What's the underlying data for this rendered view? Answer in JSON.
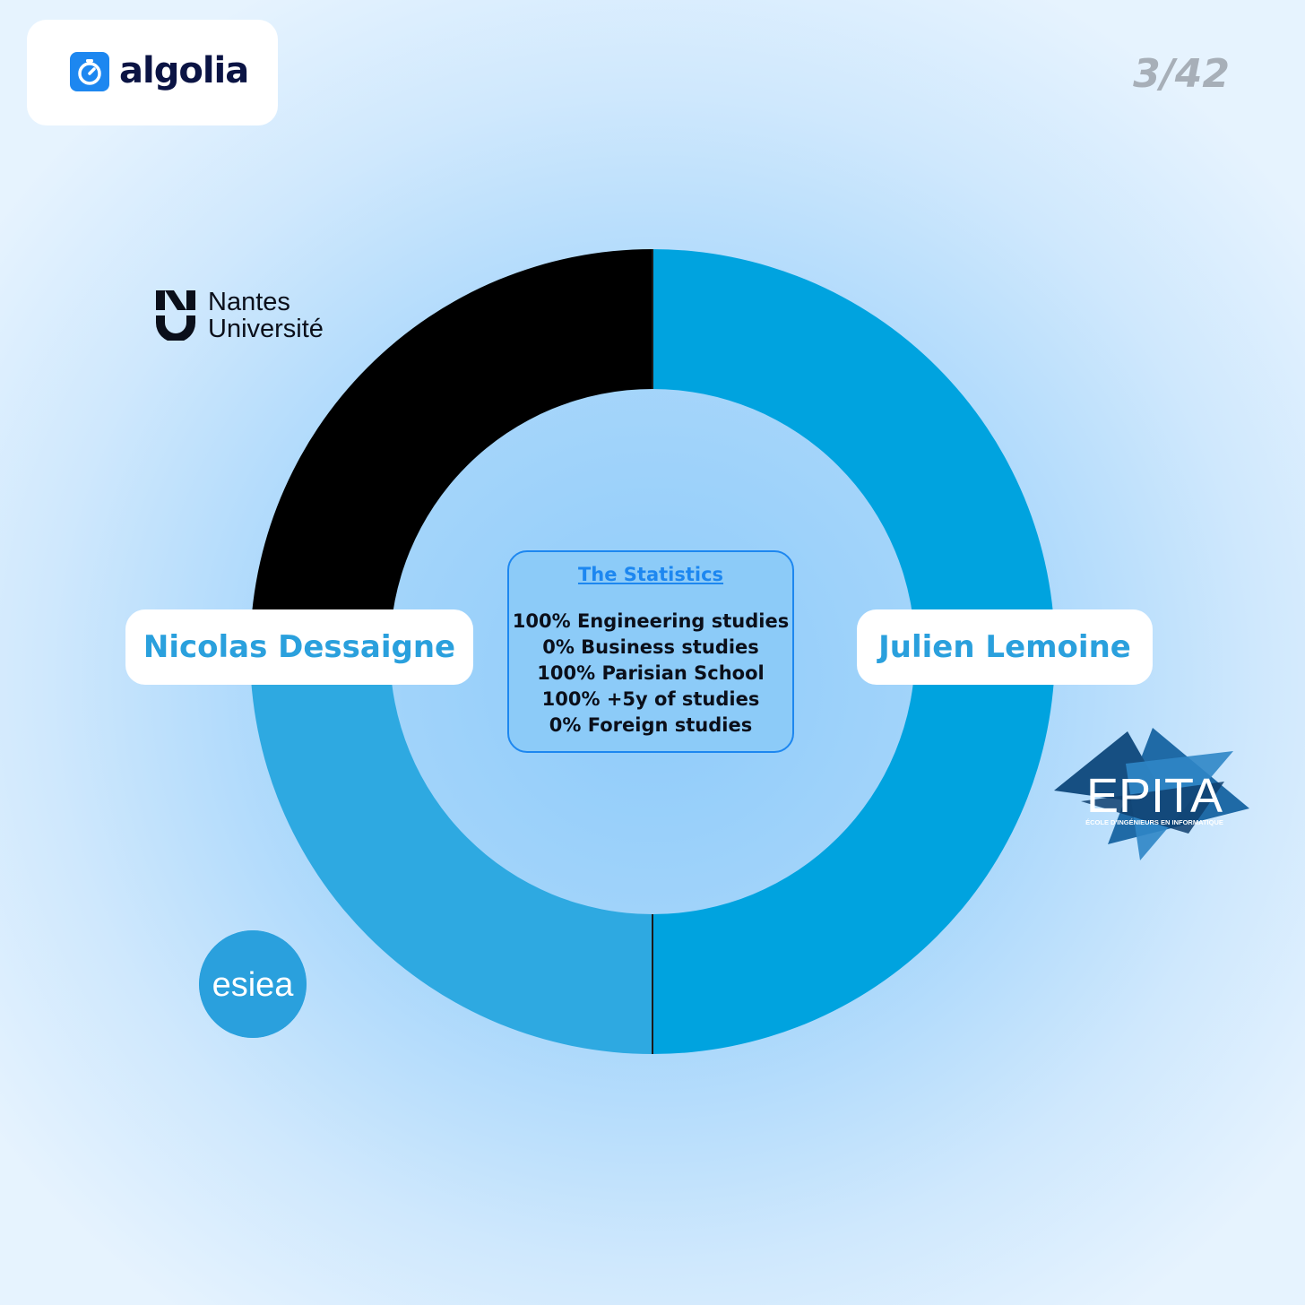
{
  "header": {
    "brand": "algolia",
    "page_counter": "3/42"
  },
  "colors": {
    "ring_segment_1": "#000000",
    "ring_segment_2": "#00a3df",
    "ring_segment_3": "#2ea9e1",
    "accent_blue": "#1d87f0",
    "name_text": "#2aa0dd"
  },
  "chart_data": {
    "type": "pie",
    "style": "donut",
    "labels": [
      "Nicolas Dessaigne",
      "Julien Lemoine"
    ],
    "segments": [
      {
        "value": 25,
        "color": "#000000"
      },
      {
        "value": 50,
        "color": "#00a3df"
      },
      {
        "value": 25,
        "color": "#2ea9e1"
      }
    ]
  },
  "stats": {
    "title": "The Statistics",
    "lines": [
      "100% Engineering studies",
      "0% Business studies",
      "100% Parisian School",
      "100% +5y of studies",
      "0% Foreign studies"
    ]
  },
  "people": {
    "left": "Nicolas Dessaigne",
    "right": "Julien Lemoine"
  },
  "logos": {
    "nantes_line1": "Nantes",
    "nantes_line2": "Université",
    "epita_name": "EPITA",
    "epita_tagline": "ÉCOLE D'INGÉNIEURS EN INFORMATIQUE",
    "esiea": "esiea"
  }
}
